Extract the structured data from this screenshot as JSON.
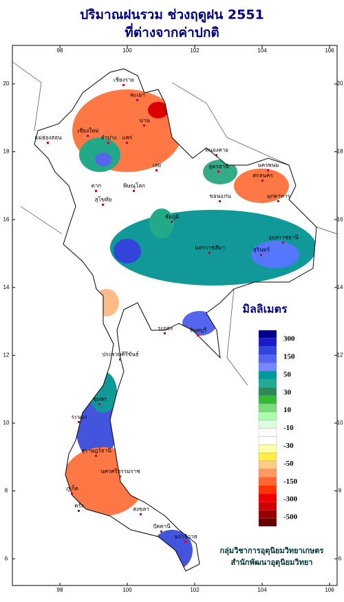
{
  "title": [
    "ปริมาณฝนรวม ช่วงฤดูฝน 2551",
    "ที่ต่างจากค่าปกติ"
  ],
  "lon_ticks": [
    98,
    100,
    102,
    104,
    106
  ],
  "lat_ticks": [
    20,
    18,
    16,
    14,
    12,
    10,
    8,
    6
  ],
  "legend": {
    "title": "มิลลิเมตร",
    "colors": [
      "#000088",
      "#1a1acc",
      "#3344dd",
      "#5566ee",
      "#7788ff",
      "#009999",
      "#22aa99",
      "#2e8b57",
      "#33bb33",
      "#77dd77",
      "#aaffaa",
      "#ddffdd",
      "#ffffff",
      "#ffffff",
      "#ffffaa",
      "#ffee44",
      "#ffcc88",
      "#ff9966",
      "#ff6633",
      "#ff3300",
      "#ee0000",
      "#cc0000",
      "#990000",
      "#660000"
    ],
    "labels": [
      300,
      150,
      50,
      30,
      10,
      -10,
      -30,
      -50,
      -150,
      -300,
      -500
    ]
  },
  "places": [
    "เชียงราย",
    "พะเยา",
    "น่าน",
    "แพร่",
    "ลำปาง",
    "เชียงใหม่",
    "แม่ฮ่องสอน",
    "ตาก",
    "สุโขทัย",
    "พิษณุโลก",
    "เลย",
    "อุดรธานี",
    "หนองคาย",
    "นครพนม",
    "สกลนคร",
    "มุกดาหาร",
    "ขอนแก่น",
    "ชัยภูมิ",
    "นครราชสีมา",
    "อุบลราชธานี",
    "สุรินทร์",
    "ระยอง",
    "จันทบุรี",
    "ประจวบคีรีขันธ์",
    "ชุมพร",
    "ระนอง",
    "สุราษฎร์ธานี",
    "นครศรีธรรมราช",
    "ภูเก็ต",
    "ตรัง",
    "สงขลา",
    "ปัตตานี",
    "นราธิวาส"
  ],
  "credits": [
    "กลุ่มวิชาการอุตุนิยมวิทยาเกษตร",
    "สำนักพัฒนาอุตุนิยมวิทยา"
  ]
}
